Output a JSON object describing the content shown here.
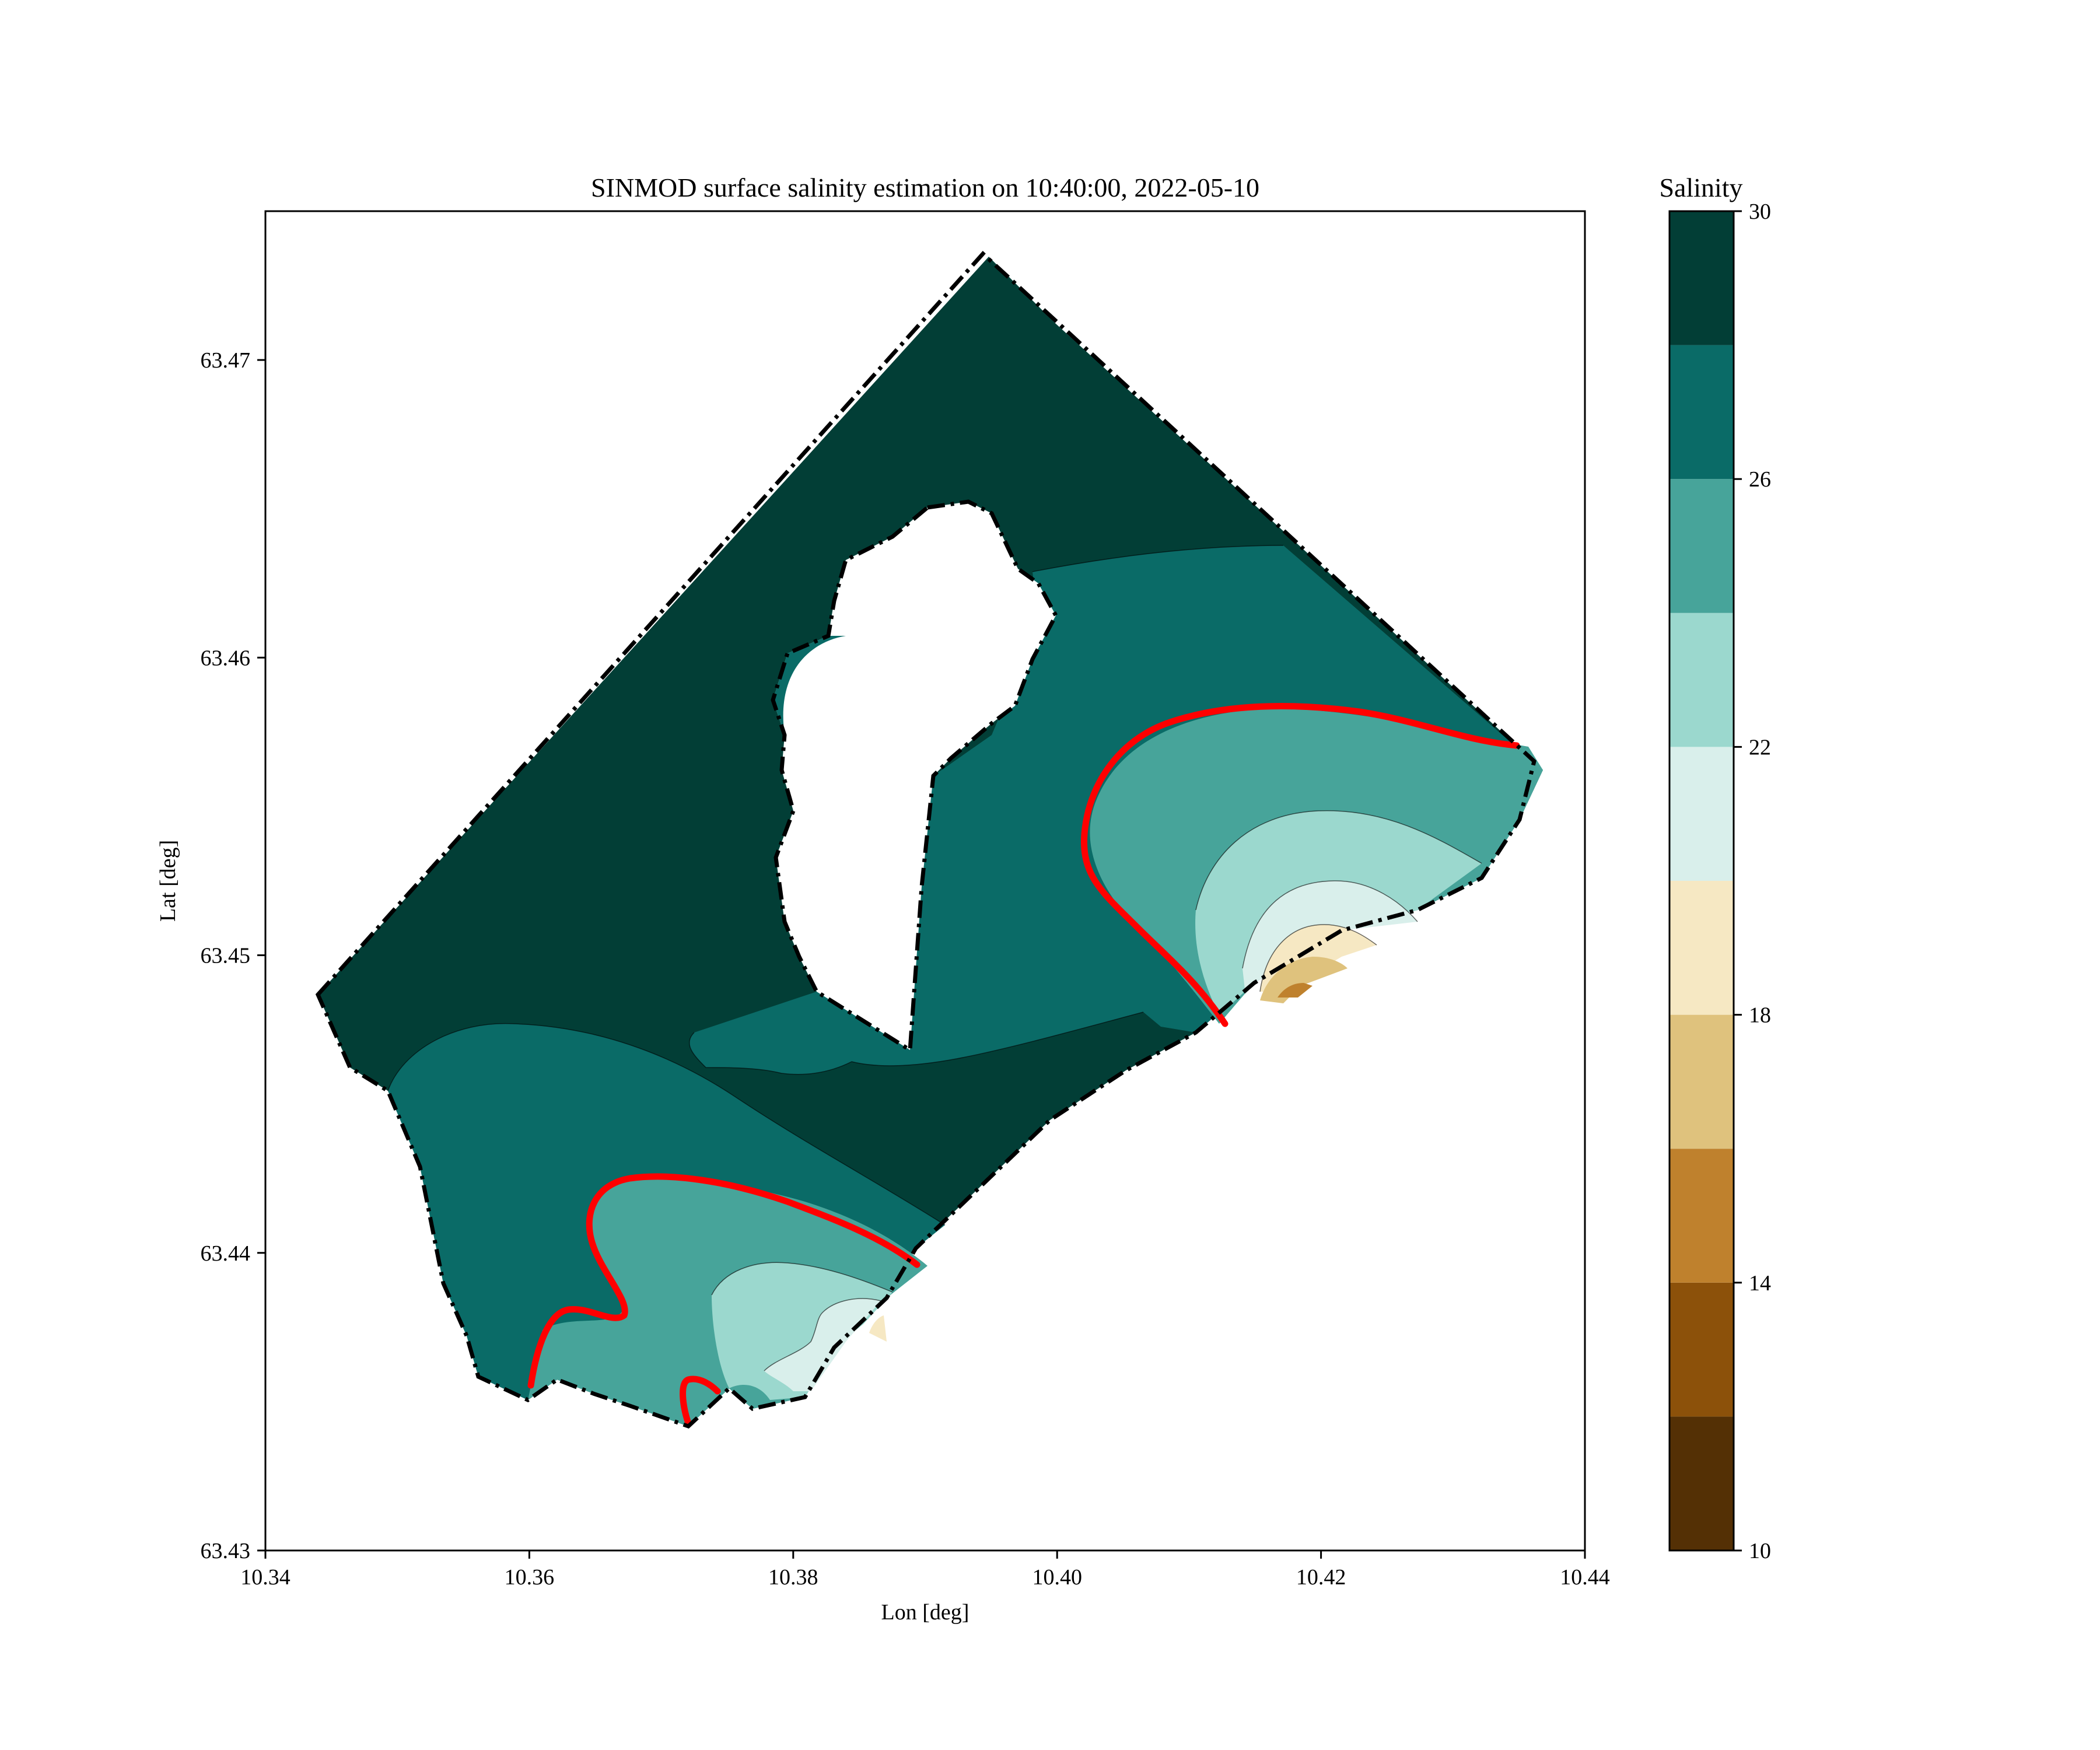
{
  "chart_data": {
    "type": "heatmap",
    "title": "SINMOD surface salinity estimation on 10:40:00, 2022-05-10",
    "xlabel": "Lon [deg]",
    "ylabel": "Lat [deg]",
    "xlim": [
      10.34,
      10.44
    ],
    "ylim": [
      63.43,
      63.475
    ],
    "x_ticks": [
      "10.34",
      "10.36",
      "10.38",
      "10.40",
      "10.42",
      "10.44"
    ],
    "y_ticks": [
      "63.43",
      "63.44",
      "63.45",
      "63.46",
      "63.47"
    ],
    "colorbar": {
      "title": "Salinity",
      "range": [
        10,
        30
      ],
      "levels": [
        10,
        12,
        14,
        16,
        18,
        20,
        22,
        24,
        26,
        28,
        30
      ],
      "tick_labels": [
        "10",
        "14",
        "18",
        "22",
        "26",
        "30"
      ],
      "colors": [
        "#543005",
        "#8c510a",
        "#bf812d",
        "#dfc27d",
        "#f6e8c3",
        "#d9efeb",
        "#9bd8ce",
        "#47a49a",
        "#0a6b67",
        "#023e36"
      ]
    },
    "boundary_line": {
      "style": "dash-dot",
      "color": "#000000"
    },
    "threshold_contour": {
      "color": "#ff0000"
    },
    "grid": false
  }
}
